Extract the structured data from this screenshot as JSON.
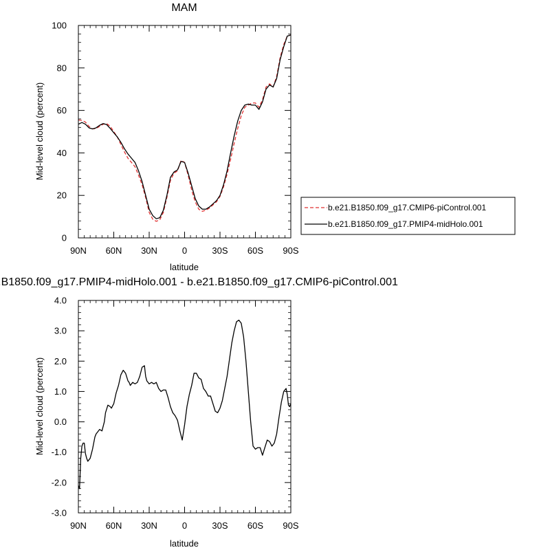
{
  "chart_data": [
    {
      "type": "line",
      "title": "MAM",
      "xlabel": "latitude",
      "ylabel": "Mid-level cloud (percent)",
      "xlim": [
        90,
        -90
      ],
      "ylim": [
        0,
        100
      ],
      "xticks": [
        {
          "value": 90,
          "label": "90N"
        },
        {
          "value": 60,
          "label": "60N"
        },
        {
          "value": 30,
          "label": "30N"
        },
        {
          "value": 0,
          "label": "0"
        },
        {
          "value": -30,
          "label": "30S"
        },
        {
          "value": -60,
          "label": "60S"
        },
        {
          "value": -90,
          "label": "90S"
        }
      ],
      "yticks": [
        {
          "value": 0,
          "label": "0"
        },
        {
          "value": 20,
          "label": "20"
        },
        {
          "value": 40,
          "label": "40"
        },
        {
          "value": 60,
          "label": "60"
        },
        {
          "value": 80,
          "label": "80"
        },
        {
          "value": 100,
          "label": "100"
        }
      ],
      "legend": "right",
      "series": [
        {
          "name": "b.e21.B1850.f09_g17.CMIP6-piControl.001",
          "color": "#e03030",
          "dash": "dashed",
          "x": [
            90,
            87,
            84,
            81,
            78,
            75,
            72,
            69,
            66,
            63,
            60,
            57,
            54,
            51,
            48,
            45,
            42,
            39,
            36,
            33,
            30,
            27,
            24,
            21,
            18,
            15,
            12,
            9,
            6,
            3,
            0,
            -3,
            -6,
            -9,
            -12,
            -15,
            -18,
            -21,
            -24,
            -27,
            -30,
            -33,
            -36,
            -39,
            -42,
            -45,
            -48,
            -51,
            -54,
            -57,
            -60,
            -63,
            -66,
            -69,
            -72,
            -75,
            -78,
            -81,
            -84,
            -87,
            -90
          ],
          "y": [
            55.5,
            55.3,
            54.5,
            52.5,
            51.3,
            51.5,
            52.5,
            53.5,
            53.8,
            52.5,
            50,
            47.5,
            44,
            40.5,
            37.5,
            35.5,
            33.5,
            29.5,
            25,
            19,
            12,
            8.8,
            7.8,
            8.5,
            12,
            19,
            27,
            30.5,
            31.5,
            36.5,
            35.5,
            29.5,
            22.5,
            17,
            13.5,
            12.5,
            13,
            14,
            15.5,
            17,
            19.5,
            24,
            30,
            37,
            44.5,
            51.5,
            57.5,
            61.5,
            62.5,
            63.5,
            63.5,
            61.5,
            65,
            71,
            72.5,
            71,
            76,
            85,
            91,
            95,
            95.5
          ]
        },
        {
          "name": "b.e21.B1850.f09_g17.PMIP4-midHolo.001",
          "color": "#000000",
          "dash": "solid",
          "x": [
            90,
            87,
            84,
            81,
            78,
            75,
            72,
            69,
            66,
            63,
            60,
            57,
            54,
            51,
            48,
            45,
            42,
            39,
            36,
            33,
            30,
            27,
            24,
            21,
            18,
            15,
            12,
            9,
            6,
            3,
            0,
            -3,
            -6,
            -9,
            -12,
            -15,
            -18,
            -21,
            -24,
            -27,
            -30,
            -33,
            -36,
            -39,
            -42,
            -45,
            -48,
            -51,
            -54,
            -57,
            -60,
            -63,
            -66,
            -69,
            -72,
            -75,
            -78,
            -81,
            -84,
            -87,
            -90
          ],
          "y": [
            53.5,
            54.3,
            53.5,
            51.8,
            51.3,
            51.8,
            53,
            53.8,
            53.3,
            51.5,
            49.5,
            47.5,
            45,
            42,
            39.5,
            37.5,
            35.5,
            31.5,
            26.5,
            20,
            13.5,
            10.5,
            9,
            9.5,
            13,
            20,
            28.5,
            31,
            32,
            36,
            35.5,
            30.5,
            24.5,
            18.5,
            15,
            13.5,
            13.5,
            14.5,
            16,
            17.5,
            20,
            25,
            31.5,
            40,
            48,
            55,
            60,
            62.5,
            63,
            62.5,
            62.5,
            60.5,
            64,
            70,
            72,
            71,
            75,
            84,
            90,
            95,
            95.5
          ]
        }
      ]
    },
    {
      "type": "line",
      "title": "b.e21.B1850.f09_g17.PMIP4-midHolo.001 - b.e21.B1850.f09_g17.CMIP6-piControl.001",
      "xlabel": "latitude",
      "ylabel": "Mid-level cloud (percent)",
      "xlim": [
        90,
        -90
      ],
      "ylim": [
        -3.0,
        4.0
      ],
      "xticks": [
        {
          "value": 90,
          "label": "90N"
        },
        {
          "value": 60,
          "label": "60N"
        },
        {
          "value": 30,
          "label": "30N"
        },
        {
          "value": 0,
          "label": "0"
        },
        {
          "value": -30,
          "label": "30S"
        },
        {
          "value": -60,
          "label": "60S"
        },
        {
          "value": -90,
          "label": "90S"
        }
      ],
      "yticks": [
        {
          "value": -3,
          "label": "-3.0"
        },
        {
          "value": -2,
          "label": "-2.0"
        },
        {
          "value": -1,
          "label": "-1.0"
        },
        {
          "value": 0,
          "label": "0.0"
        },
        {
          "value": 1,
          "label": "1.0"
        },
        {
          "value": 2,
          "label": "2.0"
        },
        {
          "value": 3,
          "label": "3.0"
        },
        {
          "value": 4,
          "label": "4.0"
        }
      ],
      "series": [
        {
          "color": "#000000",
          "dash": "solid",
          "x": [
            90,
            89,
            88,
            87,
            86,
            85,
            84,
            83,
            82,
            80,
            78,
            76,
            75,
            74,
            72,
            70,
            68,
            67,
            65,
            63,
            62,
            60,
            58,
            56,
            54,
            52,
            50,
            48,
            47,
            46,
            44,
            42,
            40,
            38,
            36,
            34,
            33,
            32,
            30,
            28,
            26,
            24,
            22,
            20,
            18,
            16,
            14,
            12,
            10,
            8,
            6,
            4,
            2,
            0,
            -2,
            -4,
            -6,
            -8,
            -10,
            -12,
            -14,
            -16,
            -18,
            -20,
            -22,
            -24,
            -26,
            -28,
            -30,
            -32,
            -34,
            -36,
            -38,
            -40,
            -42,
            -44,
            -46,
            -48,
            -50,
            -52,
            -54,
            -56,
            -58,
            -60,
            -62,
            -64,
            -66,
            -68,
            -70,
            -72,
            -74,
            -76,
            -78,
            -80,
            -82,
            -84,
            -86,
            -87,
            -88,
            -89,
            -90
          ],
          "y": [
            -2.1,
            -2.2,
            -1.2,
            -0.8,
            -0.7,
            -0.7,
            -1.05,
            -1.2,
            -1.3,
            -1.2,
            -0.9,
            -0.5,
            -0.4,
            -0.35,
            -0.25,
            -0.3,
            0.0,
            0.3,
            0.55,
            0.5,
            0.45,
            0.6,
            0.95,
            1.2,
            1.55,
            1.7,
            1.6,
            1.35,
            1.3,
            1.2,
            1.3,
            1.25,
            1.3,
            1.5,
            1.8,
            1.85,
            1.5,
            1.35,
            1.25,
            1.3,
            1.25,
            1.3,
            1.1,
            1.0,
            1.05,
            1.05,
            0.8,
            0.5,
            0.3,
            0.2,
            0.05,
            -0.3,
            -0.6,
            -0.1,
            0.5,
            0.9,
            1.2,
            1.6,
            1.6,
            1.45,
            1.4,
            1.1,
            1.0,
            0.85,
            0.85,
            0.6,
            0.35,
            0.3,
            0.45,
            0.7,
            1.1,
            1.5,
            2.05,
            2.6,
            3.0,
            3.3,
            3.35,
            3.25,
            2.8,
            2.0,
            1.0,
            0.0,
            -0.8,
            -0.9,
            -0.85,
            -0.85,
            -1.1,
            -0.85,
            -0.6,
            -0.65,
            -0.8,
            -0.7,
            -0.4,
            0.15,
            0.65,
            1.0,
            1.1,
            0.9,
            0.55,
            0.5,
            0.6
          ]
        }
      ]
    }
  ]
}
